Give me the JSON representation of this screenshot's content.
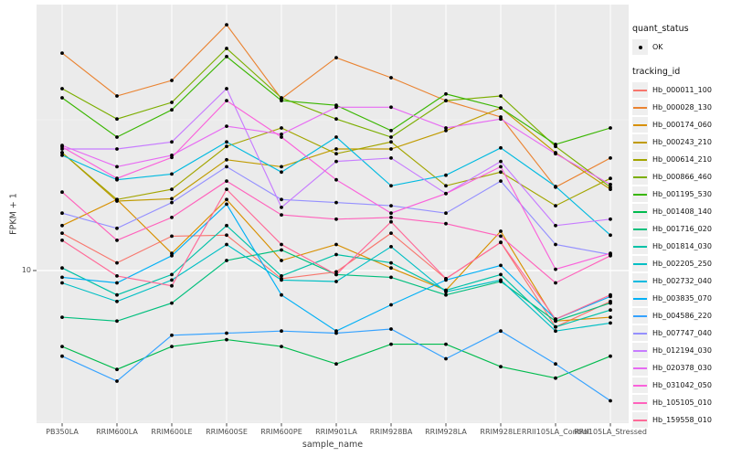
{
  "axes": {
    "x_title": "sample_name",
    "y_title": "FPKM + 1",
    "y_tick": "10"
  },
  "legend": {
    "quant_title": "quant_status",
    "quant_ok_label": "OK",
    "tracking_title": "tracking_id"
  },
  "colors": {
    "panel_bg": "#EBEBEB",
    "gridline": "#FFFFFF",
    "point": "#000000",
    "tick": "#333333",
    "tick_label": "#4D4D4D"
  },
  "chart_data": {
    "type": "line",
    "y_scale": "log10",
    "xlabel": "sample_name",
    "ylabel": "FPKM + 1",
    "y_ticks_labeled": [
      10
    ],
    "ylim_approx": [
      3,
      70
    ],
    "grid": "major horizontal at 10, vertical at each sample",
    "legend_position": "right",
    "point_shape": "black dot (quant_status OK)",
    "x": [
      "PB350LA",
      "RRIM600LA",
      "RRIM600LE",
      "RRIM600SE",
      "RRIM600PE",
      "RRIM901LA",
      "RRIM928BA",
      "RRIM928LA",
      "RRIM928LE",
      "RRII105LA_Control",
      "RRII105LA_Stressed"
    ],
    "series": [
      {
        "name": "Hb_000011_100",
        "color": "#F8766D",
        "values": [
          13.3,
          10.6,
          13.0,
          13.1,
          9.4,
          9.9,
          13.3,
          9.4,
          12.4,
          6.5,
          7.9
        ]
      },
      {
        "name": "Hb_000028_130",
        "color": "#EA8331",
        "values": [
          52.6,
          37.9,
          42.7,
          65.3,
          37.1,
          50.8,
          43.6,
          36.6,
          32.3,
          18.9,
          23.6
        ]
      },
      {
        "name": "Hb_000174_060",
        "color": "#D89000",
        "values": [
          14.1,
          17.2,
          11.4,
          17.2,
          10.8,
          12.2,
          10.2,
          8.6,
          13.5,
          6.8,
          7.0
        ]
      },
      {
        "name": "Hb_000243_210",
        "color": "#C09B00",
        "values": [
          24.6,
          17.0,
          17.3,
          23.3,
          22.1,
          25.3,
          25.3,
          29.1,
          34.6,
          24.6,
          18.6
        ]
      },
      {
        "name": "Hb_000614_210",
        "color": "#A3A500",
        "values": [
          24.6,
          17.2,
          18.6,
          25.8,
          29.7,
          24.4,
          26.7,
          19.1,
          21.2,
          16.4,
          20.2
        ]
      },
      {
        "name": "Hb_000866_460",
        "color": "#7CAE00",
        "values": [
          40.1,
          31.8,
          36.1,
          54.5,
          37.4,
          31.8,
          27.7,
          36.6,
          37.9,
          25.8,
          18.9
        ]
      },
      {
        "name": "Hb_001195_530",
        "color": "#39B600",
        "values": [
          37.4,
          27.7,
          34.1,
          51.2,
          36.6,
          35.3,
          29.1,
          38.5,
          34.6,
          26.2,
          29.7
        ]
      },
      {
        "name": "Hb_001408_140",
        "color": "#00BB4E",
        "values": [
          5.6,
          4.7,
          5.6,
          5.9,
          5.6,
          4.9,
          5.7,
          5.7,
          4.8,
          4.4,
          5.2
        ]
      },
      {
        "name": "Hb_001716_020",
        "color": "#00BF7D",
        "values": [
          7.0,
          6.8,
          7.8,
          10.8,
          11.7,
          9.7,
          9.5,
          8.3,
          9.2,
          6.8,
          7.8
        ]
      },
      {
        "name": "Hb_001814_030",
        "color": "#00C1A7",
        "values": [
          10.2,
          8.3,
          9.7,
          14.1,
          9.6,
          11.3,
          10.6,
          8.6,
          9.7,
          6.5,
          7.4
        ]
      },
      {
        "name": "Hb_002205_250",
        "color": "#00BFC4",
        "values": [
          9.1,
          7.9,
          9.3,
          12.2,
          9.3,
          9.2,
          12.0,
          8.5,
          9.3,
          6.3,
          6.7
        ]
      },
      {
        "name": "Hb_002732_040",
        "color": "#00BAE0",
        "values": [
          24.1,
          20.0,
          20.9,
          26.7,
          21.2,
          27.7,
          19.1,
          20.7,
          25.5,
          19.0,
          13.1
        ]
      },
      {
        "name": "Hb_003835_070",
        "color": "#00B0F6",
        "values": [
          9.5,
          9.1,
          11.2,
          16.6,
          8.3,
          6.3,
          7.7,
          9.3,
          10.4,
          6.9,
          8.2
        ]
      },
      {
        "name": "Hb_004586_220",
        "color": "#35A2FF",
        "values": [
          5.2,
          4.3,
          6.1,
          6.2,
          6.3,
          6.2,
          6.4,
          5.1,
          6.3,
          4.9,
          3.7
        ]
      },
      {
        "name": "Hb_007747_040",
        "color": "#9590FF",
        "values": [
          15.5,
          13.8,
          16.8,
          22.1,
          17.2,
          16.8,
          16.4,
          15.5,
          19.8,
          12.2,
          11.3
        ]
      },
      {
        "name": "Hb_012194_030",
        "color": "#C77CFF",
        "values": [
          25.3,
          25.3,
          26.7,
          40.1,
          16.2,
          23.0,
          23.6,
          18.0,
          23.0,
          14.1,
          14.8
        ]
      },
      {
        "name": "Hb_020378_030",
        "color": "#E76BF3",
        "values": [
          26.0,
          22.1,
          24.1,
          30.1,
          28.3,
          34.8,
          34.8,
          29.7,
          31.8,
          24.4,
          19.3
        ]
      },
      {
        "name": "Hb_031042_050",
        "color": "#FA62DB",
        "values": [
          25.7,
          20.2,
          23.7,
          36.6,
          27.7,
          20.0,
          15.5,
          18.0,
          22.1,
          10.1,
          11.4
        ]
      },
      {
        "name": "Hb_105105_010",
        "color": "#FF62BC",
        "values": [
          18.2,
          12.6,
          15.0,
          19.8,
          15.3,
          14.8,
          15.0,
          14.3,
          13.0,
          9.1,
          11.2
        ]
      },
      {
        "name": "Hb_159558_010",
        "color": "#FF6A98",
        "values": [
          12.6,
          9.6,
          8.9,
          18.6,
          12.2,
          9.7,
          14.5,
          9.4,
          12.4,
          6.9,
          8.3
        ]
      }
    ]
  }
}
